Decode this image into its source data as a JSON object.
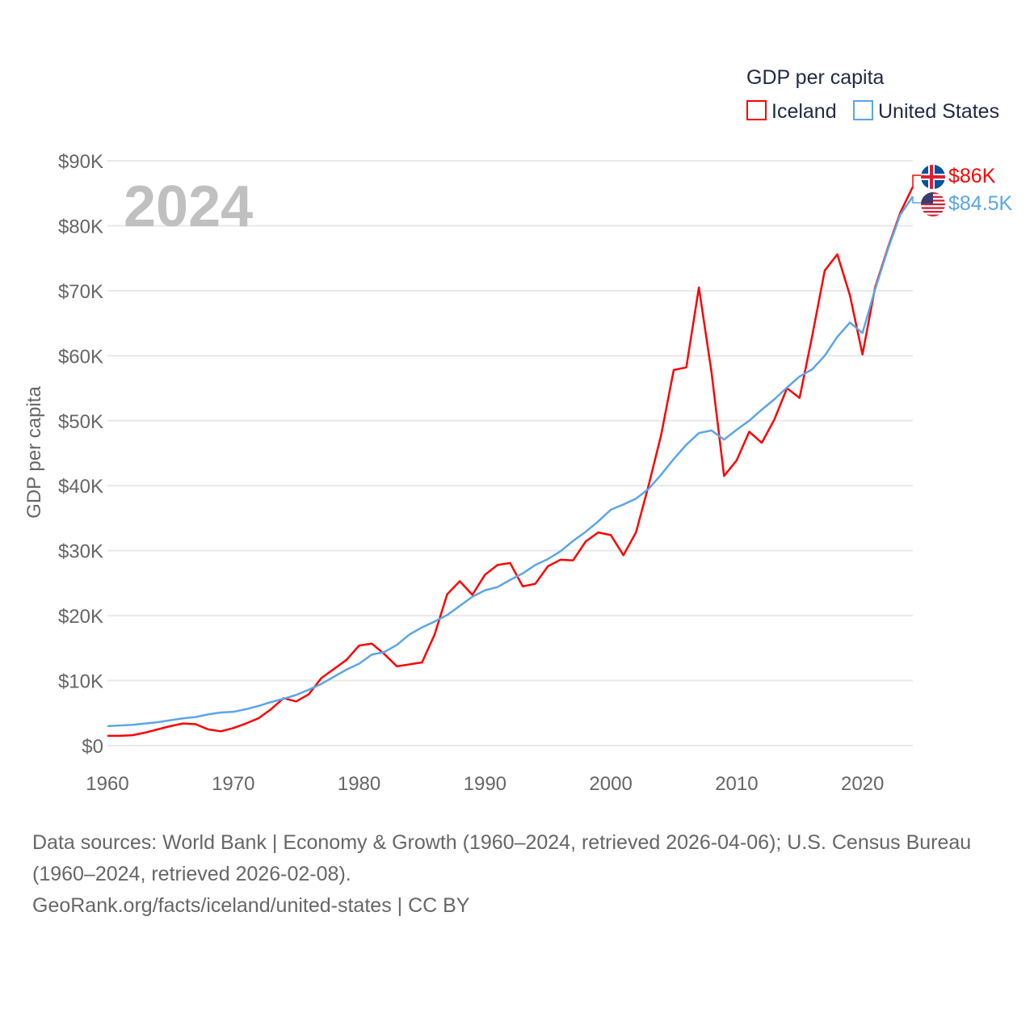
{
  "chart_data": {
    "type": "line",
    "title": "",
    "big_year_label": "2024",
    "ylabel": "GDP per capita",
    "xlabel": "",
    "xlim": [
      1960,
      2024
    ],
    "ylim": [
      0,
      90000
    ],
    "x_ticks": [
      1960,
      1970,
      1980,
      1990,
      2000,
      2010,
      2020
    ],
    "y_ticks": [
      0,
      10000,
      20000,
      30000,
      40000,
      50000,
      60000,
      70000,
      80000,
      90000
    ],
    "y_tick_labels": [
      "$0",
      "$10K",
      "$20K",
      "$30K",
      "$40K",
      "$50K",
      "$60K",
      "$70K",
      "$80K",
      "$90K"
    ],
    "grid": true,
    "legend": {
      "title": "GDP per capita",
      "placement": "top-right"
    },
    "x": [
      1960,
      1961,
      1962,
      1963,
      1964,
      1965,
      1966,
      1967,
      1968,
      1969,
      1970,
      1971,
      1972,
      1973,
      1974,
      1975,
      1976,
      1977,
      1978,
      1979,
      1980,
      1981,
      1982,
      1983,
      1984,
      1985,
      1986,
      1987,
      1988,
      1989,
      1990,
      1991,
      1992,
      1993,
      1994,
      1995,
      1996,
      1997,
      1998,
      1999,
      2000,
      2001,
      2002,
      2003,
      2004,
      2005,
      2006,
      2007,
      2008,
      2009,
      2010,
      2011,
      2012,
      2013,
      2014,
      2015,
      2016,
      2017,
      2018,
      2019,
      2020,
      2021,
      2022,
      2023,
      2024
    ],
    "series": [
      {
        "name": "Iceland",
        "color": "#ff0000",
        "end_label": "$86K",
        "flag": "iceland-flag",
        "values": [
          1500,
          1500,
          1600,
          2000,
          2500,
          3000,
          3400,
          3300,
          2500,
          2200,
          2700,
          3400,
          4200,
          5600,
          7300,
          6800,
          7900,
          10400,
          11800,
          13200,
          15400,
          15700,
          14100,
          12200,
          12500,
          12800,
          17100,
          23300,
          25300,
          23200,
          26300,
          27800,
          28100,
          24500,
          24900,
          27600,
          28600,
          28500,
          31400,
          32800,
          32400,
          29300,
          32800,
          40000,
          47800,
          57800,
          58200,
          70500,
          57500,
          41500,
          43900,
          48300,
          46600,
          50200,
          55000,
          53500,
          63000,
          73100,
          75600,
          69300,
          60200,
          70500,
          76500,
          82000,
          86000
        ]
      },
      {
        "name": "United States",
        "color": "#5aa5ea",
        "end_label": "$84.5K",
        "flag": "us-flag",
        "values": [
          3000,
          3100,
          3200,
          3400,
          3600,
          3900,
          4200,
          4400,
          4800,
          5100,
          5200,
          5600,
          6100,
          6700,
          7200,
          7800,
          8600,
          9500,
          10600,
          11700,
          12600,
          14000,
          14400,
          15500,
          17100,
          18200,
          19100,
          20100,
          21500,
          22900,
          23900,
          24400,
          25500,
          26500,
          27800,
          28700,
          29900,
          31500,
          32900,
          34500,
          36300,
          37100,
          38000,
          39500,
          41700,
          44100,
          46300,
          48100,
          48500,
          47100,
          48600,
          50000,
          51700,
          53300,
          55100,
          56800,
          57900,
          60000,
          62900,
          65100,
          63500,
          70200,
          76300,
          81700,
          84500
        ]
      }
    ]
  },
  "footer": {
    "sources": "Data sources: World Bank | Economy & Growth (1960–2024, retrieved 2026-04-06); U.S. Census Bureau (1960–2024, retrieved 2026-02-08).",
    "attribution": "GeoRank.org/facts/iceland/united-states | CC BY"
  }
}
